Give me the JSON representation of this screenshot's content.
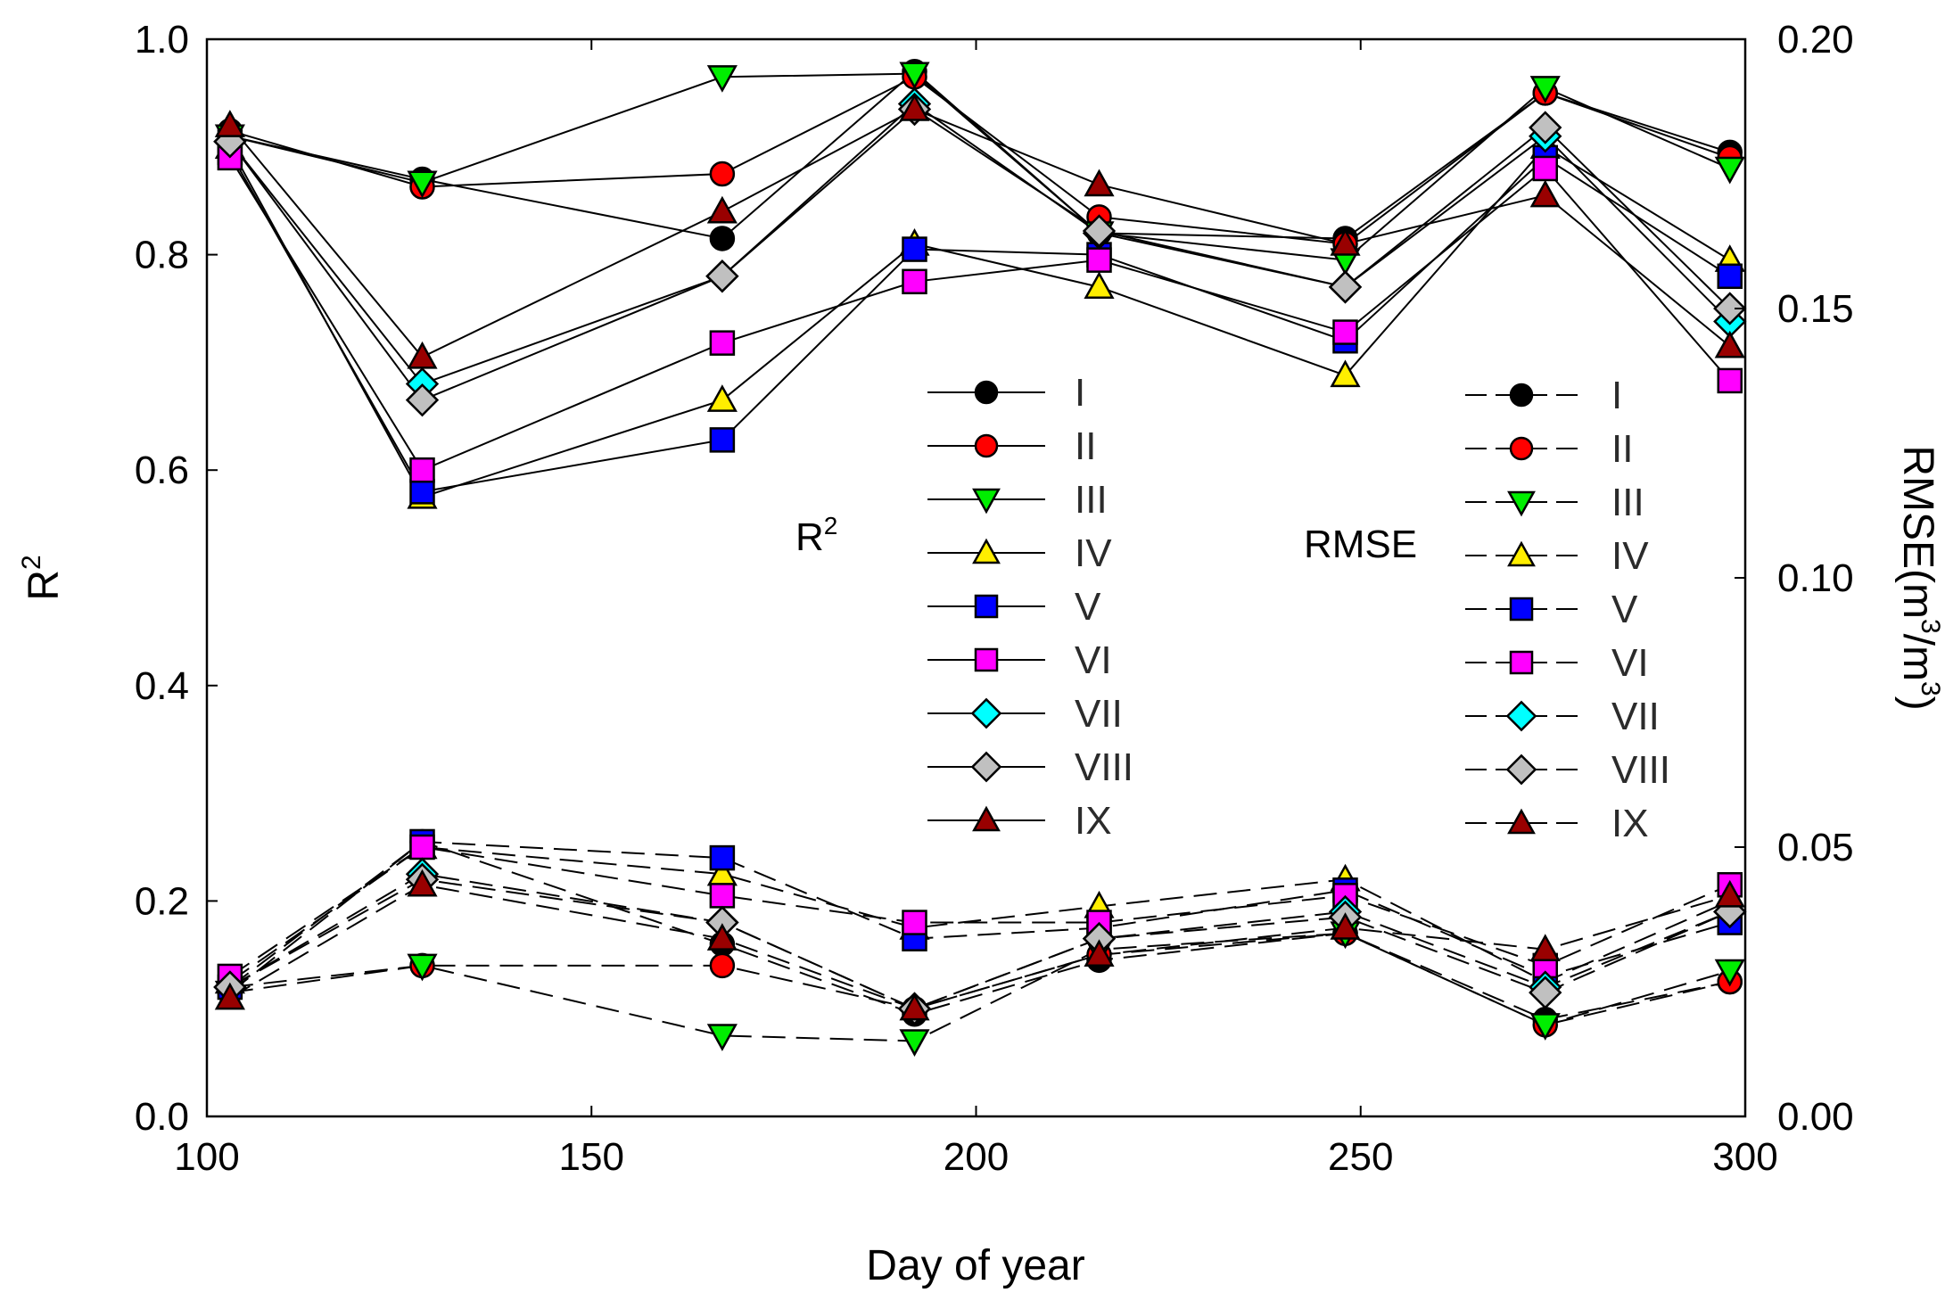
{
  "chart_data": {
    "type": "line",
    "xlabel": "Day of year",
    "ylabel_left": "R",
    "ylabel_left_sup": "2",
    "ylabel_right_pre": "RMSE(m",
    "ylabel_right_sup1": "3",
    "ylabel_right_mid": "/m",
    "ylabel_right_sup2": "3",
    "ylabel_right_post": ")",
    "xlim": [
      100,
      300
    ],
    "ylim_left": [
      0,
      1
    ],
    "ylim_right": [
      0,
      0.2
    ],
    "x_ticks": [
      "100",
      "150",
      "200",
      "250",
      "300"
    ],
    "y_left_ticks": [
      "0.0",
      "0.2",
      "0.4",
      "0.6",
      "0.8",
      "1.0"
    ],
    "y_right_ticks": [
      "0.00",
      "0.05",
      "0.10",
      "0.15",
      "0.20"
    ],
    "legend_r2_title": "R",
    "legend_r2_title_sup": "2",
    "legend_rmse_title": "RMSE",
    "x": [
      103,
      128,
      167,
      192,
      216,
      248,
      274,
      298
    ],
    "series": [
      {
        "name": "I",
        "marker": "circle",
        "color": "#000000",
        "r2": [
          0.91,
          0.87,
          0.815,
          0.97,
          0.82,
          0.815,
          0.95,
          0.895
        ],
        "rmse": [
          0.023,
          0.051,
          0.032,
          0.019,
          0.029,
          0.034,
          0.018,
          0.025
        ]
      },
      {
        "name": "II",
        "marker": "circle",
        "color": "#ff0000",
        "r2": [
          0.915,
          0.863,
          0.875,
          0.965,
          0.835,
          0.81,
          0.95,
          0.89
        ],
        "rmse": [
          0.024,
          0.028,
          0.028,
          0.02,
          0.03,
          0.034,
          0.017,
          0.025
        ]
      },
      {
        "name": "III",
        "marker": "triangle-down",
        "color": "#00ee00",
        "r2": [
          0.91,
          0.867,
          0.965,
          0.968,
          0.82,
          0.795,
          0.955,
          0.88
        ],
        "rmse": [
          0.023,
          0.028,
          0.015,
          0.014,
          0.031,
          0.034,
          0.017,
          0.027
        ]
      },
      {
        "name": "IV",
        "marker": "triangle-up",
        "color": "#ffee00",
        "r2": [
          0.9,
          0.575,
          0.665,
          0.81,
          0.77,
          0.688,
          0.9,
          0.795
        ],
        "rmse": [
          0.025,
          0.05,
          0.045,
          0.035,
          0.039,
          0.044,
          0.025,
          0.04
        ]
      },
      {
        "name": "V",
        "marker": "square",
        "color": "#0000ff",
        "r2": [
          0.895,
          0.58,
          0.628,
          0.805,
          0.8,
          0.72,
          0.89,
          0.78
        ],
        "rmse": [
          0.024,
          0.051,
          0.048,
          0.033,
          0.035,
          0.042,
          0.026,
          0.036
        ]
      },
      {
        "name": "VI",
        "marker": "square",
        "color": "#ff00ff",
        "r2": [
          0.89,
          0.6,
          0.718,
          0.775,
          0.795,
          0.728,
          0.88,
          0.683
        ],
        "rmse": [
          0.026,
          0.05,
          0.041,
          0.036,
          0.036,
          0.041,
          0.028,
          0.043
        ]
      },
      {
        "name": "VII",
        "marker": "diamond",
        "color": "#00ffff",
        "r2": [
          0.905,
          0.68,
          0.78,
          0.94,
          0.82,
          0.77,
          0.91,
          0.738
        ],
        "rmse": [
          0.024,
          0.045,
          0.036,
          0.02,
          0.033,
          0.038,
          0.024,
          0.038
        ]
      },
      {
        "name": "VIII",
        "marker": "diamond",
        "color": "#c0c0c0",
        "r2": [
          0.905,
          0.665,
          0.78,
          0.935,
          0.822,
          0.77,
          0.918,
          0.75
        ],
        "rmse": [
          0.024,
          0.044,
          0.036,
          0.02,
          0.033,
          0.037,
          0.023,
          0.038
        ]
      },
      {
        "name": "IX",
        "marker": "triangle-up",
        "color": "#990000",
        "r2": [
          0.92,
          0.705,
          0.84,
          0.935,
          0.865,
          0.81,
          0.855,
          0.715
        ],
        "rmse": [
          0.022,
          0.043,
          0.033,
          0.02,
          0.03,
          0.035,
          0.031,
          0.041
        ]
      }
    ]
  }
}
